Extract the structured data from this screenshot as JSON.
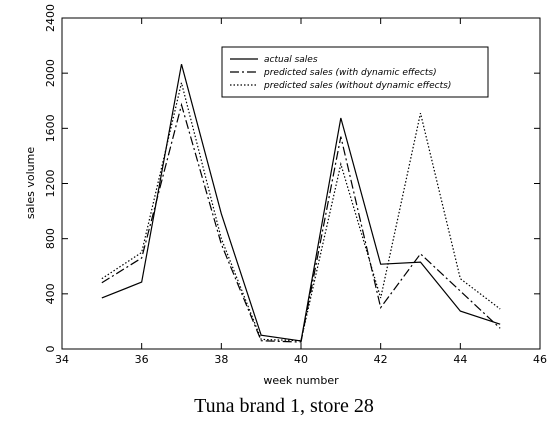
{
  "chart_data": {
    "type": "line",
    "caption": "Tuna brand 1, store 28",
    "x_label": "week number",
    "y_label": "sales volume",
    "x": [
      35,
      36,
      37,
      38,
      39,
      40,
      41,
      42,
      43,
      44,
      45
    ],
    "series": [
      {
        "name": "actual sales",
        "color": "#000000",
        "dash": "solid",
        "values": [
          370,
          485,
          2065,
          980,
          100,
          58,
          1675,
          615,
          630,
          275,
          180
        ]
      },
      {
        "name": "predicted sales (with dynamic effects)",
        "color": "#000000",
        "dash": "dashdot",
        "values": [
          480,
          660,
          1770,
          760,
          60,
          50,
          1540,
          300,
          690,
          420,
          150
        ]
      },
      {
        "name": "predicted sales (without dynamic effects)",
        "color": "#000000",
        "dash": "dotted",
        "values": [
          510,
          700,
          1930,
          800,
          70,
          60,
          1340,
          370,
          1710,
          510,
          290
        ]
      }
    ],
    "xlim": [
      34,
      46
    ],
    "xticks": [
      34,
      36,
      38,
      40,
      42,
      44,
      46
    ],
    "ylim": [
      0,
      2400
    ],
    "yticks": [
      0,
      400,
      800,
      1200,
      1600,
      2000,
      2400
    ],
    "grid": false,
    "legend": "top-right"
  }
}
